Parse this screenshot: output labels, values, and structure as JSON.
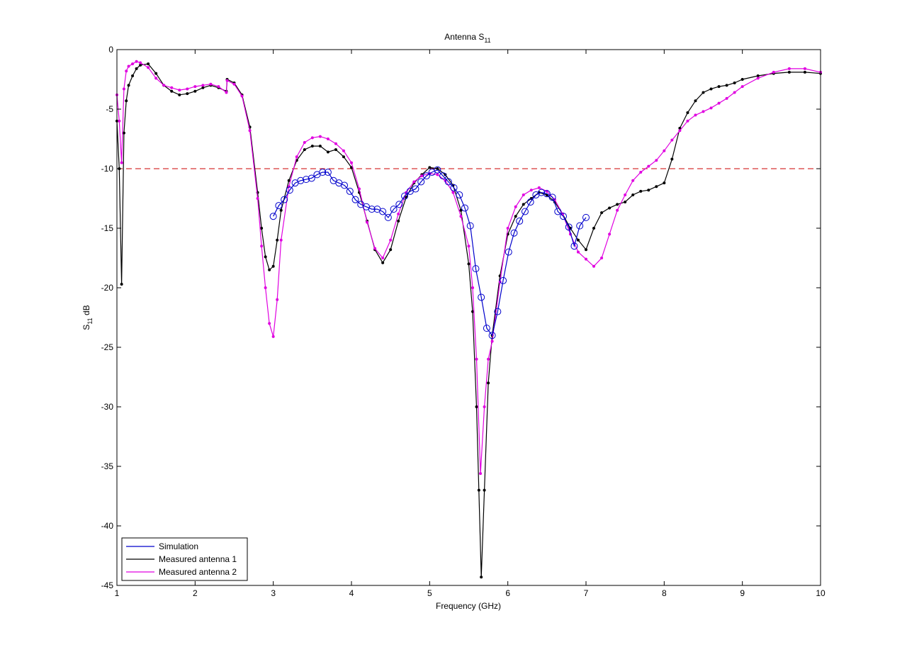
{
  "chart_data": {
    "type": "line",
    "title_main": "Antenna S",
    "title_sub": "11",
    "xlabel": "Frequency (GHz)",
    "ylabel_main": "S",
    "ylabel_sub": "11",
    "ylabel_suffix": " dB",
    "xlim": [
      1,
      10
    ],
    "ylim": [
      -45,
      0
    ],
    "xticks": [
      1,
      2,
      3,
      4,
      5,
      6,
      7,
      8,
      9,
      10
    ],
    "yticks": [
      0,
      -5,
      -10,
      -15,
      -20,
      -25,
      -30,
      -35,
      -40,
      -45
    ],
    "xtick_labels": [
      "1",
      "2",
      "3",
      "4",
      "5",
      "6",
      "7",
      "8",
      "9",
      "10"
    ],
    "ytick_labels": [
      "0",
      "-5",
      "-10",
      "-15",
      "-20",
      "-25",
      "-30",
      "-35",
      "-40",
      "-45"
    ],
    "grid": false,
    "legend_position": "bottom-left",
    "reference_line": {
      "y": -10,
      "color": "#cc0000",
      "style": "dashed"
    },
    "series": [
      {
        "name": "Simulation",
        "color": "#0000cc",
        "marker": "circle",
        "x": [
          3.0,
          3.07,
          3.14,
          3.21,
          3.28,
          3.35,
          3.42,
          3.49,
          3.56,
          3.63,
          3.7,
          3.77,
          3.84,
          3.91,
          3.98,
          4.05,
          4.12,
          4.19,
          4.26,
          4.33,
          4.4,
          4.47,
          4.54,
          4.61,
          4.68,
          4.75,
          4.82,
          4.89,
          4.96,
          5.03,
          5.1,
          5.17,
          5.24,
          5.31,
          5.38,
          5.45,
          5.52,
          5.59,
          5.66,
          5.73,
          5.8,
          5.87,
          5.94,
          6.01,
          6.08,
          6.15,
          6.22,
          6.29,
          6.36,
          6.43,
          6.5,
          6.57,
          6.64,
          6.71,
          6.78,
          6.85,
          6.92,
          7.0
        ],
        "y": [
          -14.0,
          -13.1,
          -12.6,
          -11.8,
          -11.2,
          -11.0,
          -10.9,
          -10.8,
          -10.5,
          -10.3,
          -10.3,
          -11.0,
          -11.2,
          -11.4,
          -11.9,
          -12.6,
          -13.0,
          -13.2,
          -13.4,
          -13.4,
          -13.6,
          -14.1,
          -13.4,
          -13.0,
          -12.3,
          -11.9,
          -11.7,
          -11.1,
          -10.6,
          -10.3,
          -10.1,
          -10.6,
          -11.1,
          -11.6,
          -12.2,
          -13.3,
          -14.8,
          -18.4,
          -20.8,
          -23.4,
          -24.0,
          -22.0,
          -19.4,
          -17.0,
          -15.4,
          -14.4,
          -13.6,
          -12.8,
          -12.2,
          -12.0,
          -12.1,
          -12.4,
          -13.6,
          -14.0,
          -14.9,
          -16.5,
          -14.8,
          -14.1
        ]
      },
      {
        "name": "Measured antenna 1",
        "color": "#000000",
        "marker": "dot",
        "x": [
          1.0,
          1.03,
          1.06,
          1.09,
          1.12,
          1.15,
          1.2,
          1.25,
          1.3,
          1.4,
          1.5,
          1.6,
          1.7,
          1.8,
          1.9,
          2.0,
          2.1,
          2.2,
          2.3,
          2.4,
          2.41,
          2.5,
          2.6,
          2.7,
          2.8,
          2.85,
          2.9,
          2.95,
          3.0,
          3.05,
          3.1,
          3.2,
          3.3,
          3.4,
          3.5,
          3.6,
          3.7,
          3.8,
          3.9,
          4.0,
          4.1,
          4.2,
          4.3,
          4.4,
          4.5,
          4.6,
          4.7,
          4.8,
          4.9,
          5.0,
          5.1,
          5.2,
          5.3,
          5.4,
          5.5,
          5.55,
          5.6,
          5.63,
          5.66,
          5.7,
          5.75,
          5.8,
          5.9,
          6.0,
          6.1,
          6.2,
          6.3,
          6.4,
          6.5,
          6.6,
          6.7,
          6.8,
          6.9,
          7.0,
          7.1,
          7.2,
          7.3,
          7.4,
          7.5,
          7.6,
          7.7,
          7.8,
          7.9,
          8.0,
          8.1,
          8.2,
          8.3,
          8.4,
          8.5,
          8.6,
          8.7,
          8.8,
          8.9,
          9.0,
          9.2,
          9.4,
          9.6,
          9.8,
          10.0
        ],
        "y": [
          -6.0,
          -10.0,
          -19.7,
          -7.0,
          -4.3,
          -3.0,
          -2.2,
          -1.6,
          -1.3,
          -1.2,
          -2.0,
          -3.0,
          -3.5,
          -3.8,
          -3.7,
          -3.5,
          -3.2,
          -3.0,
          -3.2,
          -3.5,
          -2.5,
          -2.8,
          -3.8,
          -6.5,
          -12.0,
          -15.0,
          -17.4,
          -18.5,
          -18.2,
          -16.0,
          -13.5,
          -11.0,
          -9.3,
          -8.4,
          -8.1,
          -8.1,
          -8.6,
          -8.4,
          -9.0,
          -9.9,
          -12.0,
          -14.4,
          -16.8,
          -17.9,
          -16.8,
          -14.4,
          -12.4,
          -11.2,
          -10.5,
          -9.9,
          -10.0,
          -10.5,
          -11.4,
          -13.5,
          -18.0,
          -22.0,
          -30.0,
          -37.0,
          -44.3,
          -37.0,
          -28.0,
          -24.0,
          -19.0,
          -15.5,
          -14.0,
          -13.0,
          -12.5,
          -12.0,
          -12.2,
          -12.8,
          -13.8,
          -15.0,
          -16.0,
          -16.8,
          -15.0,
          -13.7,
          -13.3,
          -13.0,
          -12.8,
          -12.2,
          -11.9,
          -11.8,
          -11.5,
          -11.2,
          -9.2,
          -6.6,
          -5.3,
          -4.3,
          -3.6,
          -3.3,
          -3.1,
          -3.0,
          -2.8,
          -2.5,
          -2.2,
          -2.0,
          -1.9,
          -1.9,
          -2.0
        ]
      },
      {
        "name": "Measured antenna 2",
        "color": "#e000e0",
        "marker": "dot",
        "x": [
          1.0,
          1.03,
          1.06,
          1.09,
          1.12,
          1.15,
          1.2,
          1.25,
          1.3,
          1.4,
          1.5,
          1.6,
          1.7,
          1.8,
          1.9,
          2.0,
          2.1,
          2.2,
          2.3,
          2.4,
          2.41,
          2.5,
          2.6,
          2.7,
          2.8,
          2.85,
          2.9,
          2.95,
          3.0,
          3.05,
          3.1,
          3.2,
          3.3,
          3.4,
          3.5,
          3.6,
          3.7,
          3.8,
          3.9,
          4.0,
          4.1,
          4.2,
          4.3,
          4.4,
          4.5,
          4.6,
          4.7,
          4.8,
          4.9,
          5.0,
          5.1,
          5.2,
          5.3,
          5.4,
          5.5,
          5.55,
          5.6,
          5.65,
          5.7,
          5.75,
          5.8,
          5.9,
          6.0,
          6.1,
          6.2,
          6.3,
          6.4,
          6.5,
          6.6,
          6.7,
          6.8,
          6.9,
          7.0,
          7.1,
          7.2,
          7.3,
          7.4,
          7.5,
          7.6,
          7.7,
          7.8,
          7.9,
          8.0,
          8.1,
          8.2,
          8.3,
          8.4,
          8.5,
          8.6,
          8.7,
          8.8,
          8.9,
          9.0,
          9.2,
          9.4,
          9.6,
          9.8,
          10.0
        ],
        "y": [
          -3.8,
          -6.0,
          -9.5,
          -3.3,
          -1.8,
          -1.4,
          -1.2,
          -1.0,
          -1.1,
          -1.5,
          -2.4,
          -3.0,
          -3.2,
          -3.4,
          -3.3,
          -3.1,
          -3.0,
          -2.9,
          -3.1,
          -3.6,
          -2.6,
          -2.9,
          -3.9,
          -6.8,
          -12.5,
          -16.5,
          -20.0,
          -23.0,
          -24.1,
          -21.0,
          -16.0,
          -11.5,
          -9.0,
          -7.8,
          -7.4,
          -7.3,
          -7.5,
          -7.9,
          -8.5,
          -9.5,
          -11.7,
          -14.5,
          -16.7,
          -17.5,
          -16.0,
          -13.8,
          -12.0,
          -11.1,
          -10.6,
          -10.4,
          -10.5,
          -11.0,
          -12.0,
          -14.0,
          -16.5,
          -20.0,
          -26.0,
          -35.6,
          -30.0,
          -26.0,
          -24.5,
          -19.5,
          -15.0,
          -13.2,
          -12.2,
          -11.8,
          -11.6,
          -11.9,
          -12.6,
          -13.8,
          -15.5,
          -17.0,
          -17.6,
          -18.2,
          -17.5,
          -15.5,
          -13.5,
          -12.2,
          -11.0,
          -10.3,
          -9.8,
          -9.3,
          -8.5,
          -7.6,
          -6.8,
          -6.0,
          -5.5,
          -5.2,
          -4.9,
          -4.5,
          -4.1,
          -3.6,
          -3.1,
          -2.4,
          -1.9,
          -1.6,
          -1.6,
          -1.9
        ]
      }
    ]
  }
}
